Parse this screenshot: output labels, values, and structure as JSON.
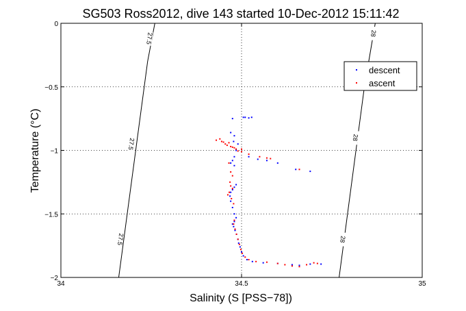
{
  "chart_data": {
    "type": "scatter",
    "title": "SG503 Ross2012, dive 143 started 10-Dec-2012 15:11:42",
    "xlabel": "Salinity (S [PSS−78])",
    "ylabel": "Temperature (°C)",
    "xlim": [
      34,
      35
    ],
    "ylim": [
      -2,
      0
    ],
    "x_ticks": [
      34,
      34.5,
      35
    ],
    "x_tick_labels": [
      "34",
      "34.5",
      "35"
    ],
    "y_ticks": [
      0,
      -0.5,
      -1,
      -1.5,
      -2
    ],
    "y_tick_labels": [
      "0",
      "−0.5",
      "−1",
      "−1.5",
      "−2"
    ],
    "grid": true,
    "legend_position": "top-right",
    "colors": {
      "descent": "#0000ff",
      "ascent": "#ff0000",
      "isopycnal": "#000000"
    },
    "isopycnals": [
      {
        "label": "27.5",
        "points": [
          [
            34.16,
            -2.0
          ],
          [
            34.24,
            -0.3
          ],
          [
            34.26,
            0.0
          ]
        ],
        "label_positions": [
          [
            34.245,
            -0.12
          ],
          [
            34.195,
            -0.95
          ],
          [
            34.165,
            -1.7
          ]
        ]
      },
      {
        "label": "28",
        "points": [
          [
            34.77,
            -2.0
          ],
          [
            34.84,
            -0.5
          ],
          [
            34.87,
            0.0
          ]
        ],
        "label_positions": [
          [
            34.865,
            -0.08
          ],
          [
            34.815,
            -0.9
          ],
          [
            34.78,
            -1.7
          ]
        ]
      }
    ],
    "series": [
      {
        "name": "descent",
        "points": [
          [
            34.475,
            -0.75
          ],
          [
            34.505,
            -0.74
          ],
          [
            34.51,
            -0.74
          ],
          [
            34.52,
            -0.745
          ],
          [
            34.528,
            -0.74
          ],
          [
            34.47,
            -0.86
          ],
          [
            34.48,
            -0.885
          ],
          [
            34.478,
            -0.93
          ],
          [
            34.49,
            -0.95
          ],
          [
            34.485,
            -1.0
          ],
          [
            34.48,
            -1.05
          ],
          [
            34.475,
            -1.08
          ],
          [
            34.47,
            -1.1
          ],
          [
            34.48,
            -1.12
          ],
          [
            34.52,
            -1.05
          ],
          [
            34.545,
            -1.07
          ],
          [
            34.57,
            -1.08
          ],
          [
            34.6,
            -1.1
          ],
          [
            34.65,
            -1.15
          ],
          [
            34.69,
            -1.165
          ],
          [
            34.485,
            -1.27
          ],
          [
            34.48,
            -1.29
          ],
          [
            34.475,
            -1.31
          ],
          [
            34.47,
            -1.33
          ],
          [
            34.468,
            -1.36
          ],
          [
            34.47,
            -1.4
          ],
          [
            34.475,
            -1.45
          ],
          [
            34.48,
            -1.5
          ],
          [
            34.485,
            -1.53
          ],
          [
            34.48,
            -1.56
          ],
          [
            34.475,
            -1.58
          ],
          [
            34.478,
            -1.6
          ],
          [
            34.482,
            -1.63
          ],
          [
            34.486,
            -1.66
          ],
          [
            34.49,
            -1.7
          ],
          [
            34.492,
            -1.73
          ],
          [
            34.496,
            -1.76
          ],
          [
            34.5,
            -1.8
          ],
          [
            34.505,
            -1.83
          ],
          [
            34.515,
            -1.86
          ],
          [
            34.53,
            -1.875
          ],
          [
            34.56,
            -1.885
          ],
          [
            34.6,
            -1.89
          ],
          [
            34.64,
            -1.9
          ],
          [
            34.66,
            -1.905
          ],
          [
            34.69,
            -1.895
          ],
          [
            34.72,
            -1.895
          ]
        ]
      },
      {
        "name": "ascent",
        "points": [
          [
            34.43,
            -0.92
          ],
          [
            34.44,
            -0.91
          ],
          [
            34.445,
            -0.93
          ],
          [
            34.45,
            -0.935
          ],
          [
            34.455,
            -0.95
          ],
          [
            34.46,
            -0.96
          ],
          [
            34.465,
            -0.94
          ],
          [
            34.47,
            -0.97
          ],
          [
            34.475,
            -0.975
          ],
          [
            34.48,
            -0.98
          ],
          [
            34.485,
            -0.99
          ],
          [
            34.5,
            -0.99
          ],
          [
            34.49,
            -1.005
          ],
          [
            34.5,
            -1.01
          ],
          [
            34.52,
            -1.03
          ],
          [
            34.55,
            -1.05
          ],
          [
            34.57,
            -1.06
          ],
          [
            34.58,
            -1.065
          ],
          [
            34.66,
            -1.15
          ],
          [
            34.465,
            -1.1
          ],
          [
            34.47,
            -1.17
          ],
          [
            34.475,
            -1.2
          ],
          [
            34.468,
            -1.25
          ],
          [
            34.47,
            -1.28
          ],
          [
            34.475,
            -1.3
          ],
          [
            34.466,
            -1.33
          ],
          [
            34.462,
            -1.35
          ],
          [
            34.472,
            -1.38
          ],
          [
            34.478,
            -1.42
          ],
          [
            34.48,
            -1.55
          ],
          [
            34.478,
            -1.58
          ],
          [
            34.482,
            -1.62
          ],
          [
            34.486,
            -1.66
          ],
          [
            34.49,
            -1.7
          ],
          [
            34.494,
            -1.74
          ],
          [
            34.498,
            -1.78
          ],
          [
            34.502,
            -1.81
          ],
          [
            34.51,
            -1.84
          ],
          [
            34.52,
            -1.86
          ],
          [
            34.54,
            -1.875
          ],
          [
            34.57,
            -1.88
          ],
          [
            34.6,
            -1.89
          ],
          [
            34.62,
            -1.9
          ],
          [
            34.64,
            -1.91
          ],
          [
            34.66,
            -1.915
          ],
          [
            34.68,
            -1.9
          ],
          [
            34.7,
            -1.885
          ],
          [
            34.71,
            -1.89
          ]
        ]
      }
    ]
  }
}
